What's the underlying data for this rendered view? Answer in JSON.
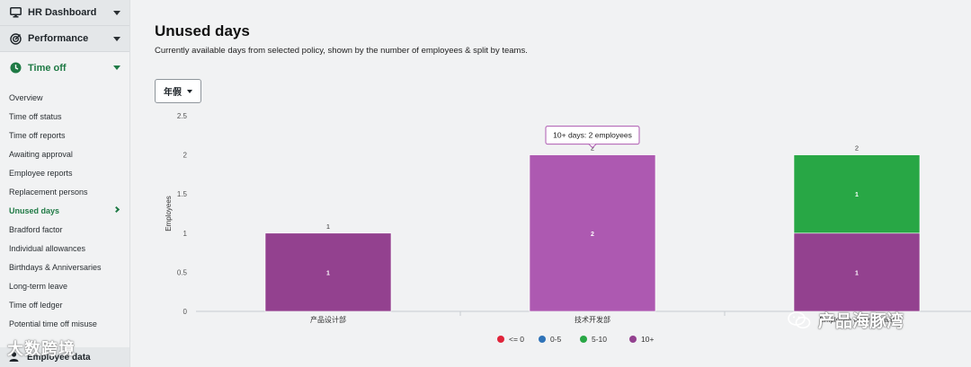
{
  "sidebar": {
    "top_groups": [
      {
        "label": "HR Dashboard",
        "icon": "monitor-icon"
      },
      {
        "label": "Performance",
        "icon": "target-icon"
      }
    ],
    "time_off": {
      "label": "Time off",
      "icon": "clock-icon"
    },
    "items": [
      {
        "label": "Overview"
      },
      {
        "label": "Time off status"
      },
      {
        "label": "Time off reports"
      },
      {
        "label": "Awaiting approval"
      },
      {
        "label": "Employee reports"
      },
      {
        "label": "Replacement persons"
      },
      {
        "label": "Unused days",
        "active": true
      },
      {
        "label": "Bradford factor"
      },
      {
        "label": "Individual allowances"
      },
      {
        "label": "Birthdays & Anniversaries"
      },
      {
        "label": "Long-term leave"
      },
      {
        "label": "Time off ledger"
      },
      {
        "label": "Potential time off misuse"
      }
    ],
    "bottom_group": {
      "label": "Employee data",
      "icon": "person-icon"
    }
  },
  "main": {
    "title": "Unused days",
    "subtitle": "Currently available days from selected policy, shown by the number of employees & split by teams.",
    "policy_select": {
      "value": "年假"
    }
  },
  "colors": {
    "accent": "#1f7a45",
    "le0": "#e0243a",
    "r0_5": "#2f73b8",
    "r5_10": "#28a745",
    "r10plus": "#93418f",
    "r10plus_hover": "#ad59b1"
  },
  "chart_data": {
    "type": "bar",
    "stacked": true,
    "ylabel": "Employees",
    "ylim": [
      0,
      2.5
    ],
    "yticks": [
      "0",
      "0.5",
      "1",
      "1.5",
      "2",
      "2.5"
    ],
    "categories": [
      "产品设计部",
      "技术开发部",
      "Employee with no team"
    ],
    "series": [
      {
        "name": "<= 0",
        "values": [
          0,
          0,
          0
        ]
      },
      {
        "name": "0-5",
        "values": [
          0,
          0,
          0
        ]
      },
      {
        "name": "5-10",
        "values": [
          0,
          0,
          1
        ]
      },
      {
        "name": "10+",
        "values": [
          1,
          2,
          1
        ]
      }
    ],
    "totals": [
      "1",
      "2",
      "2"
    ],
    "tooltip": {
      "text": "10+ days: 2 employees",
      "category_index": 1
    },
    "legend": "bottom-center"
  },
  "watermarks": {
    "left": "大数跨境",
    "right": "产品海豚湾"
  }
}
